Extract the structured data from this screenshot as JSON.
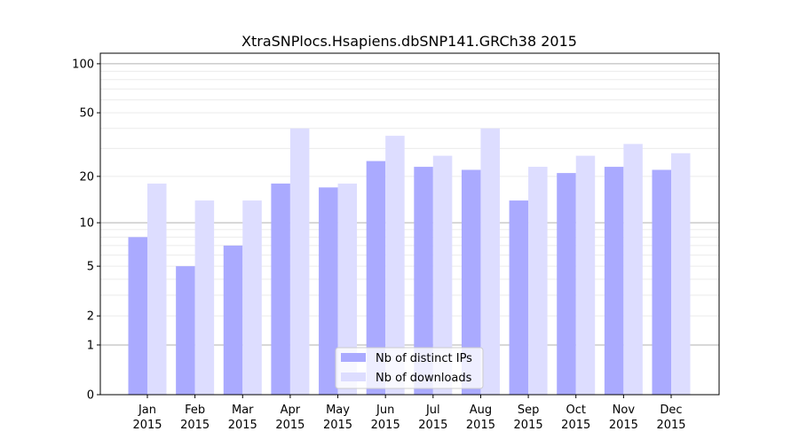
{
  "chart_data": {
    "type": "bar",
    "title": "XtraSNPlocs.Hsapiens.dbSNP141.GRCh38 2015",
    "xlabel": "",
    "ylabel": "",
    "y_scale": "log(1+y)",
    "ylim": [
      0,
      116
    ],
    "yticks": [
      0,
      1,
      2,
      5,
      10,
      20,
      50,
      100
    ],
    "grid": true,
    "legend_position": "bottom-center",
    "categories": [
      [
        "Jan",
        "2015"
      ],
      [
        "Feb",
        "2015"
      ],
      [
        "Mar",
        "2015"
      ],
      [
        "Apr",
        "2015"
      ],
      [
        "May",
        "2015"
      ],
      [
        "Jun",
        "2015"
      ],
      [
        "Jul",
        "2015"
      ],
      [
        "Aug",
        "2015"
      ],
      [
        "Sep",
        "2015"
      ],
      [
        "Oct",
        "2015"
      ],
      [
        "Nov",
        "2015"
      ],
      [
        "Dec",
        "2015"
      ]
    ],
    "series": [
      {
        "name": "Nb of distinct IPs",
        "color": "#aaaaff",
        "values": [
          8,
          5,
          7,
          18,
          17,
          25,
          23,
          22,
          14,
          21,
          23,
          22
        ]
      },
      {
        "name": "Nb of downloads",
        "color": "#ddddff",
        "values": [
          18,
          14,
          14,
          40,
          18,
          36,
          27,
          40,
          23,
          27,
          32,
          28
        ]
      }
    ]
  }
}
